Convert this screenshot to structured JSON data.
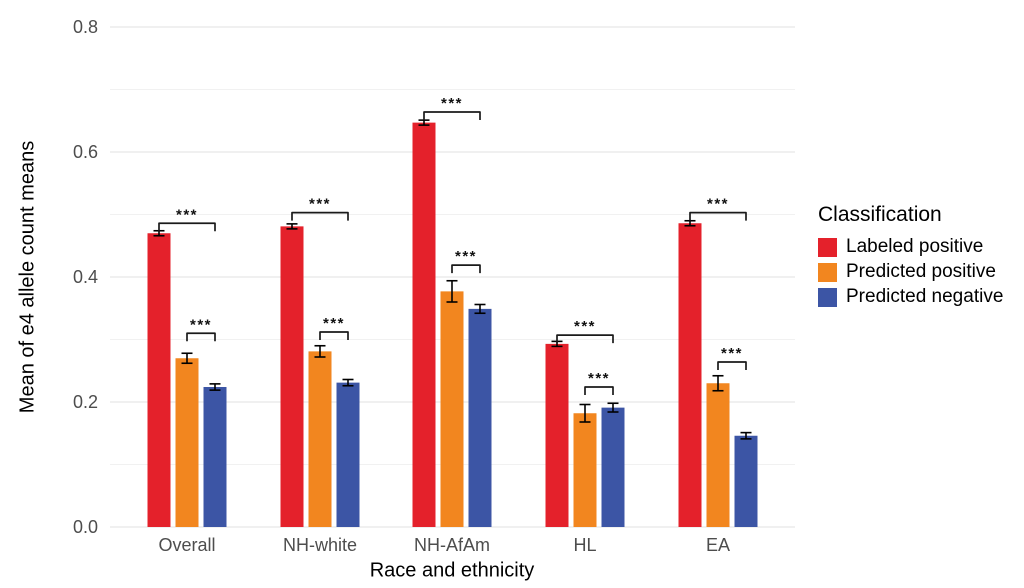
{
  "chart_data": {
    "type": "bar",
    "title": "",
    "xlabel": "Race and ethnicity",
    "ylabel": "Mean of e4 allele count means",
    "categories": [
      "Overall",
      "NH-white",
      "NH-AfAm",
      "HL",
      "EA"
    ],
    "series": [
      {
        "name": "Labeled positive",
        "color": "#e4212b",
        "values": [
          0.47,
          0.481,
          0.647,
          0.293,
          0.486
        ],
        "errors": [
          0.004,
          0.004,
          0.004,
          0.004,
          0.004
        ]
      },
      {
        "name": "Predicted positive",
        "color": "#f2861f",
        "values": [
          0.27,
          0.281,
          0.377,
          0.182,
          0.23
        ],
        "errors": [
          0.008,
          0.009,
          0.017,
          0.014,
          0.012
        ]
      },
      {
        "name": "Predicted negative",
        "color": "#3c55a5",
        "values": [
          0.224,
          0.231,
          0.349,
          0.191,
          0.146
        ],
        "errors": [
          0.005,
          0.005,
          0.007,
          0.007,
          0.005
        ]
      }
    ],
    "y_ticks": [
      0.0,
      0.2,
      0.4,
      0.6,
      0.8
    ],
    "y_tick_labels": [
      "0.0",
      "0.2",
      "0.4",
      "0.6",
      "0.8"
    ],
    "ylim": [
      0,
      0.8
    ],
    "grid": true,
    "legend_position": "right",
    "legend_title": "Classification",
    "significance": [
      {
        "group": 0,
        "from": 0,
        "to": 2,
        "label": "***",
        "y": 0.486
      },
      {
        "group": 0,
        "from": 1,
        "to": 2,
        "label": "***",
        "y": 0.31
      },
      {
        "group": 1,
        "from": 0,
        "to": 2,
        "label": "***",
        "y": 0.503
      },
      {
        "group": 1,
        "from": 1,
        "to": 2,
        "label": "***",
        "y": 0.312
      },
      {
        "group": 2,
        "from": 0,
        "to": 2,
        "label": "***",
        "y": 0.664
      },
      {
        "group": 2,
        "from": 1,
        "to": 2,
        "label": "***",
        "y": 0.419
      },
      {
        "group": 3,
        "from": 0,
        "to": 2,
        "label": "***",
        "y": 0.307
      },
      {
        "group": 3,
        "from": 1,
        "to": 2,
        "label": "***",
        "y": 0.224
      },
      {
        "group": 4,
        "from": 0,
        "to": 2,
        "label": "***",
        "y": 0.503
      },
      {
        "group": 4,
        "from": 1,
        "to": 2,
        "label": "***",
        "y": 0.264
      }
    ]
  }
}
